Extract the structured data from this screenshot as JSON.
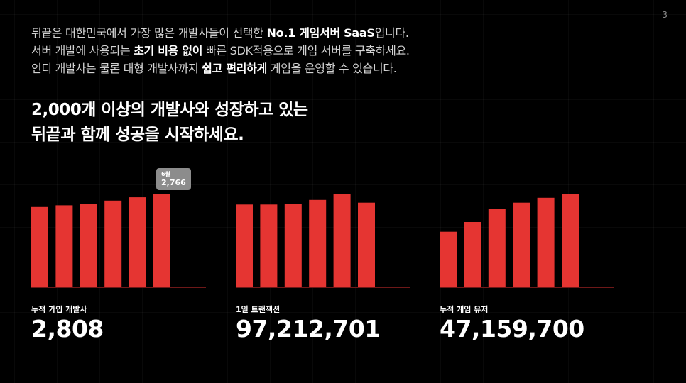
{
  "page_number": "3",
  "intro": {
    "line1": [
      {
        "text": "뒤끝은 대한민국에서 가장 많은 개발사들이 선택한 ",
        "highlight": false
      },
      {
        "text": "No.1 게임서버 SaaS",
        "highlight": true
      },
      {
        "text": "입니다.",
        "highlight": false
      }
    ],
    "line2": [
      {
        "text": "서버 개발에 사용되는 ",
        "highlight": false
      },
      {
        "text": "초기 비용 없이",
        "highlight": true
      },
      {
        "text": " 빠른 SDK적용으로 게임 서버를 구축하세요.",
        "highlight": false
      }
    ],
    "line3": [
      {
        "text": "인디 개발사는 물론 대형 개발사까지 ",
        "highlight": false
      },
      {
        "text": "쉽고 편리하게",
        "highlight": true
      },
      {
        "text": " 게임을 운영할 수 있습니다.",
        "highlight": false
      }
    ]
  },
  "headline": {
    "line1": "2,000개 이상의 개발사와 성장하고 있는",
    "line2": "뒤끝과 함께 성공을 시작하세요."
  },
  "colors": {
    "bar": "#e53532",
    "baseline": "#6e1818",
    "tooltip": "#8c8c8c"
  },
  "charts": {
    "developers": {
      "label": "누적 가입 개발사",
      "value": "2,808",
      "tooltip": {
        "month": "6월",
        "value": "2,766"
      }
    },
    "transactions": {
      "label": "1일 트랜잭션",
      "value": "97,212,701"
    },
    "users": {
      "label": "누적 게임 유저",
      "value": "47,159,700"
    }
  },
  "chart_data": [
    {
      "type": "bar",
      "title": "누적 가입 개발사",
      "values": [
        2390,
        2440,
        2490,
        2580,
        2680,
        2766
      ],
      "ylim": [
        0,
        2766
      ],
      "grid": false,
      "annotations": [
        {
          "index": 5,
          "month": "6월",
          "value": 2766
        }
      ]
    },
    {
      "type": "bar",
      "title": "1일 트랜잭션",
      "values": [
        90000000,
        90000000,
        91000000,
        95000000,
        101000000,
        92000000
      ],
      "ylim": [
        0,
        101000000
      ],
      "grid": false
    },
    {
      "type": "bar",
      "title": "누적 게임 유저",
      "values": [
        27500000,
        32300000,
        38900000,
        41900000,
        44300000,
        46000000
      ],
      "ylim": [
        0,
        46000000
      ],
      "grid": false
    }
  ]
}
